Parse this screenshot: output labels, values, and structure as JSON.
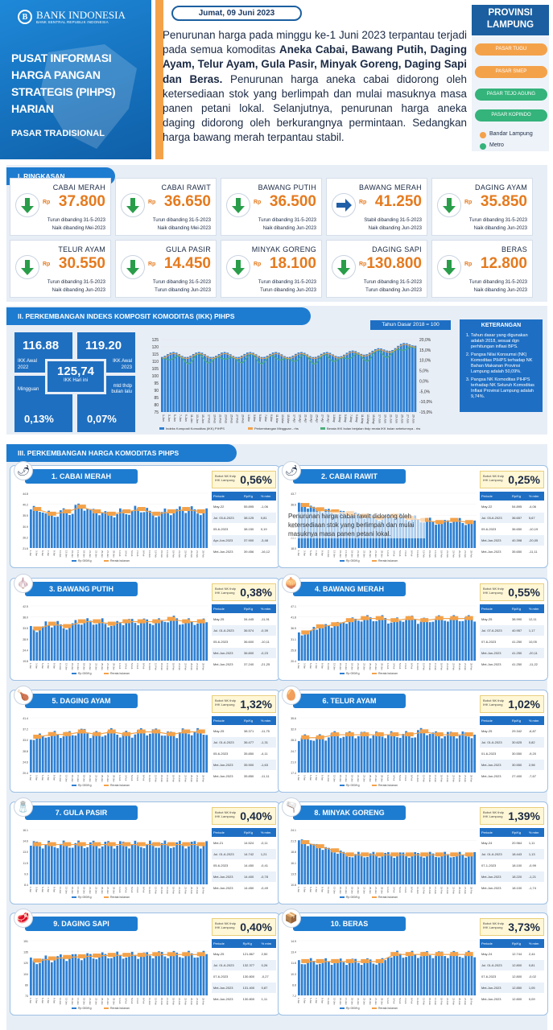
{
  "header": {
    "org_name": "BANK INDONESIA",
    "org_sub": "BANK SENTRAL REPUBLIK INDONESIA",
    "title": "PUSAT INFORMASI HARGA PANGAN STRATEGIS (PIHPS) HARIAN",
    "subtitle": "PASAR TRADISIONAL",
    "date": "Jumat, 09 Juni 2023",
    "summary_lead": "Penurunan harga pada minggu ke-1 Juni 2023 terpantau terjadi pada semua komoditas ",
    "summary_bold": "Aneka Cabai, Bawang Putih, Daging Ayam, Telur Ayam, Gula Pasir, Minyak Goreng, Daging Sapi dan Beras.",
    "summary_tail": " Penurunan harga aneka cabai didorong oleh ketersediaan stok yang berlimpah dan mulai masuknya masa panen petani lokal. Selanjutnya, penurunan harga aneka daging didorong oleh berkurangnya permintaan. Sedangkan harga bawang merah terpantau stabil."
  },
  "province": {
    "title": "PROVINSI LAMPUNG",
    "markets": [
      {
        "label": "PASAR TUGU",
        "color": "#f4a24a"
      },
      {
        "label": "PASAR SMEP",
        "color": "#f4a24a"
      },
      {
        "label": "PASAR TEJO AGUNG",
        "color": "#34b37a"
      },
      {
        "label": "PASAR KOPINDO",
        "color": "#34b37a"
      }
    ],
    "legend": [
      {
        "label": "Bandar Lampung",
        "color": "#f4a24a"
      },
      {
        "label": "Metro",
        "color": "#34b37a"
      }
    ]
  },
  "ringkasan": {
    "title": "I. RINGKASAN",
    "currency": "Rp",
    "items": [
      {
        "name": "CABAI MERAH",
        "price": "37.800",
        "trend": "down",
        "note1": "Turun dibanding 31-5-2023",
        "note2": "Naik dibanding Mei-2023"
      },
      {
        "name": "CABAI RAWIT",
        "price": "36.650",
        "trend": "down",
        "note1": "Turun dibanding 31-5-2023",
        "note2": "Naik dibanding Mei-2023"
      },
      {
        "name": "BAWANG PUTIH",
        "price": "36.500",
        "trend": "down",
        "note1": "Turun dibanding 31-5-2023",
        "note2": "Naik dibanding Jun-2023"
      },
      {
        "name": "BAWANG MERAH",
        "price": "41.250",
        "trend": "flat",
        "note1": "Stabil dibanding 31-5-2023",
        "note2": "Naik dibanding Jun-2023"
      },
      {
        "name": "DAGING AYAM",
        "price": "35.850",
        "trend": "down",
        "note1": "Turun dibanding 31-5-2023",
        "note2": "Naik dibanding Jun-2023"
      },
      {
        "name": "TELUR AYAM",
        "price": "30.550",
        "trend": "down",
        "note1": "Turun dibanding 31-5-2023",
        "note2": "Naik dibanding Jun-2023"
      },
      {
        "name": "GULA PASIR",
        "price": "14.450",
        "trend": "down",
        "note1": "Turun dibanding 31-5-2023",
        "note2": "Turun dibanding Jun-2023"
      },
      {
        "name": "MINYAK GORENG",
        "price": "18.100",
        "trend": "down",
        "note1": "Turun dibanding 31-5-2023",
        "note2": "Turun dibanding Jun-2023"
      },
      {
        "name": "DAGING SAPI",
        "price": "130.800",
        "trend": "down",
        "note1": "Turun dibanding 31-5-2023",
        "note2": "Turun dibanding Jun-2023"
      },
      {
        "name": "BERAS",
        "price": "12.800",
        "trend": "down",
        "note1": "Turun dibanding 31-5-2023",
        "note2": "Naik dibanding Jun-2023"
      }
    ]
  },
  "ikk": {
    "title": "II. PERKEMBANGAN INDEKS KOMPOSIT KOMODITAS (IKK) PIHPS",
    "base_year": "Tahun Dasar 2018 = 100",
    "awal_2022": "116.88",
    "awal_2022_label": "IKK Awal 2022",
    "awal_2023": "119.20",
    "awal_2023_label": "IKK Awal 2023",
    "hari_ini": "125,74",
    "hari_ini_label": "IKK Hari ini",
    "mingguan_label": "Mingguan",
    "mingguan": "0,13%",
    "mtd_label": "mtd thdp bulan lalu",
    "mtd": "0,07%",
    "keterangan_title": "KETERANGAN",
    "keterangan": [
      "Tahun dasar yang digunakan adalah 2018, sesuai dgn perhitungan inflasi BPS.",
      "Pangsa Nilai Konsumsi (NK) Komoditas PIHPS terhadap NK Bahan Makanan Provinsi Lampung adalah 50,09%.",
      "Pangsa NK Komoditas PIHPS terhadap NK Seluruh Komoditas Inflasi Provinsi Lampung adalah 9,74%."
    ],
    "legend": [
      "Indeks Komposit Komoditas (IKK) PIHPS",
      "Perkembangan Mingguan - rhs",
      "Berata IKK bulan berjalan thdp rerata IKK bulan sebelumnya - rhs"
    ],
    "y_left": [
      "125",
      "120",
      "115",
      "110",
      "105",
      "100",
      "95",
      "90",
      "85",
      "80",
      "75"
    ],
    "y_right": [
      "20,0%",
      "15,0%",
      "10,0%",
      "5,0%",
      "0,0%",
      "-5,0%",
      "-10,0%",
      "-15,0%"
    ]
  },
  "komoditas": {
    "title": "III. PERKEMBANGAN HARGA KOMODITAS PIHPS",
    "bobot_label": "Bobot NK thdp IHK Lampung",
    "table_head": [
      "Periode",
      "Rp/Kg",
      "% mtm"
    ],
    "legend": [
      "Rp 000/Kg",
      "Rerata bulanan"
    ],
    "items": [
      {
        "name": "1. CABAI MERAH",
        "icon": "🌶",
        "bobot": "0,56%",
        "rows": [
          [
            "May-22",
            "55.895",
            "-1,06"
          ],
          [
            "Jul. 03-6-2023",
            "38.125",
            "0,81"
          ],
          [
            "05-6-2023",
            "38.150",
            "0,19"
          ],
          [
            "Apr-Jun-2023",
            "37.900",
            "-3,48"
          ],
          [
            "Mei-Jun-2023",
            "39.456",
            "-16,12"
          ]
        ]
      },
      {
        "name": "2. CABAI RAWIT",
        "icon": "🌶",
        "bobot": "0,25%",
        "rows": [
          [
            "May-22",
            "54.895",
            "-4,06"
          ],
          [
            "Jul. 03-6-2023",
            "36.657",
            "5,67"
          ],
          [
            "09-6-2023",
            "36.650",
            "-10,19"
          ],
          [
            "Mei-Jun-2023",
            "40.398",
            "-20,05"
          ],
          [
            "Mei-Jun-2023",
            "35.650",
            "-11,11"
          ]
        ]
      },
      {
        "name": "3. BAWANG PUTIH",
        "icon": "🧄",
        "bobot": "0,38%",
        "rows": [
          [
            "May-25",
            "34.445",
            "-11,91"
          ],
          [
            "Jul. 01-6-2023",
            "36.574",
            "-0,39"
          ],
          [
            "05-6-2023",
            "36.600",
            "-10,11"
          ],
          [
            "Mei-Jun-2023",
            "36.800",
            "-0,23"
          ],
          [
            "Mei-Jun-2023",
            "37.240",
            "-21,25"
          ]
        ]
      },
      {
        "name": "4. BAWANG MERAH",
        "icon": "🧅",
        "bobot": "0,55%",
        "rows": [
          [
            "May-25",
            "38.990",
            "12,11"
          ],
          [
            "Jul. 07-6-2023",
            "40.957",
            "1,17"
          ],
          [
            "07-6-2023",
            "41.250",
            "10,05"
          ],
          [
            "Mei-Jun-2023",
            "41.250",
            "-20,11"
          ],
          [
            "Mei-Jun-2023",
            "41.250",
            "-11,22"
          ]
        ]
      },
      {
        "name": "5. DAGING AYAM",
        "icon": "🍗",
        "bobot": "1,32%",
        "rows": [
          [
            "May-25",
            "38.371",
            "-11,75"
          ],
          [
            "Jul. 01-6-2023",
            "36.477",
            "-1,31"
          ],
          [
            "05-6-2023",
            "35.850",
            "-4,11"
          ],
          [
            "Mei-Jun-2023",
            "35.900",
            "-1,63"
          ],
          [
            "Mei-Jun-2023",
            "35.850",
            "-11,11"
          ]
        ]
      },
      {
        "name": "6. TELUR AYAM",
        "icon": "🥚",
        "bobot": "1,02%",
        "rows": [
          [
            "May-25",
            "29.342",
            "-6,87"
          ],
          [
            "Jul. 01-6-2023",
            "30.625",
            "0,82"
          ],
          [
            "01-6-2023",
            "30.550",
            "-9,20"
          ],
          [
            "Mei-Jun-2023",
            "30.550",
            "2,98"
          ],
          [
            "Mei-Jun-2023",
            "27.400",
            "-7,67"
          ]
        ]
      },
      {
        "name": "7. GULA PASIR",
        "icon": "🧂",
        "bobot": "0,40%",
        "rows": [
          [
            "Mei-21",
            "14.524",
            "-0,11"
          ],
          [
            "Jul. 01-6-2023",
            "14.742",
            "1,21"
          ],
          [
            "05-6-2023",
            "14.450",
            "-0,41"
          ],
          [
            "Mei-Jun-2023",
            "14.400",
            "-0,78"
          ],
          [
            "Mei-Jun-2023",
            "14.450",
            "-0,49"
          ]
        ]
      },
      {
        "name": "8. MINYAK GORENG",
        "icon": "🫗",
        "bobot": "1,39%",
        "rows": [
          [
            "May-24",
            "20.964",
            "1,11"
          ],
          [
            "Jul. 01-6-2023",
            "18.443",
            "1,13"
          ],
          [
            "07-1-2023",
            "18.100",
            "-0,99"
          ],
          [
            "Mei-Jun-2023",
            "18.220",
            "-1,21"
          ],
          [
            "Mei-Jun-2023",
            "18.100",
            "-1,74"
          ]
        ]
      },
      {
        "name": "9. DAGING SAPI",
        "icon": "🥩",
        "bobot": "0,40%",
        "rows": [
          [
            "May-25",
            "121.867",
            "2,50"
          ],
          [
            "Jul. 01-6-2023",
            "132.377",
            "0,26"
          ],
          [
            "07-6-2023",
            "130.800",
            "-0,27"
          ],
          [
            "Mei-Jun-2023",
            "131.400",
            "0,87"
          ],
          [
            "Mei-Jun-2023",
            "130.800",
            "1,11"
          ]
        ]
      },
      {
        "name": "10. BERAS",
        "icon": "📦",
        "bobot": "3,73%",
        "rows": [
          [
            "May-24",
            "12.744",
            "2,44"
          ],
          [
            "Jul. 01-6-2023",
            "12.800",
            "0,81"
          ],
          [
            "07-6-2023",
            "12.800",
            "-0,02"
          ],
          [
            "Mei-Jun-2023",
            "12.850",
            "1,05"
          ],
          [
            "Mei-Jun-2023",
            "12.800",
            "0,09"
          ]
        ]
      }
    ],
    "overlay_text": "Penurunan harga cabai rawit didorong oleh ketersediaan stok yang berlimpah dan mulai masuknya masa panen petani lokal."
  },
  "chart_data": [
    {
      "type": "line",
      "title": "IKK PIHPS",
      "series": [
        {
          "name": "Indeks Komposit Komoditas (IKK) PIHPS"
        }
      ],
      "ylim": [
        75,
        125
      ]
    },
    {
      "type": "bar",
      "title": "1. CABAI MERAH",
      "avg": [
        38,
        36,
        37,
        39,
        37,
        36,
        37,
        38,
        36,
        37,
        38,
        37
      ]
    },
    {
      "type": "bar",
      "title": "2. CABAI RAWIT",
      "avg": [
        38,
        36,
        35,
        34,
        33,
        32,
        33,
        32,
        31,
        30,
        31,
        30
      ]
    },
    {
      "type": "bar",
      "title": "3. BAWANG PUTIH",
      "avg": [
        33,
        35,
        34,
        36,
        36,
        35,
        36,
        36,
        36,
        37,
        36,
        36
      ]
    },
    {
      "type": "bar",
      "title": "4. BAWANG MERAH",
      "avg": [
        34,
        37,
        38,
        40,
        41,
        41,
        40,
        41,
        40,
        41,
        41,
        41
      ]
    },
    {
      "type": "bar",
      "title": "5. DAGING AYAM",
      "avg": [
        34,
        35,
        35,
        36,
        35,
        36,
        35,
        36,
        36,
        35,
        36,
        36
      ]
    },
    {
      "type": "bar",
      "title": "6. TELUR AYAM",
      "avg": [
        29,
        29,
        30,
        30,
        30,
        30,
        30,
        30,
        31,
        30,
        30,
        30
      ]
    },
    {
      "type": "bar",
      "title": "7. GULA PASIR",
      "avg": [
        14,
        14,
        14,
        14,
        14,
        14,
        14,
        14,
        14,
        14,
        14,
        14
      ]
    },
    {
      "type": "bar",
      "title": "8. MINYAK GORENG",
      "avg": [
        21,
        20,
        19,
        18,
        18,
        18,
        18,
        18,
        18,
        18,
        18,
        18
      ]
    },
    {
      "type": "bar",
      "title": "9. DAGING SAPI",
      "avg": [
        122,
        125,
        127,
        128,
        129,
        130,
        130,
        130,
        131,
        131,
        131,
        131
      ]
    },
    {
      "type": "bar",
      "title": "10. BERAS",
      "avg": [
        12,
        12,
        12,
        12,
        12,
        12,
        13,
        13,
        13,
        13,
        13,
        13
      ]
    }
  ]
}
